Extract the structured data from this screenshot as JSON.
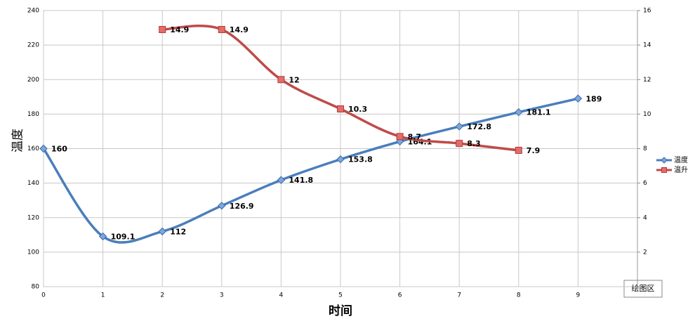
{
  "chart_data": {
    "type": "line",
    "x": [
      0,
      1,
      2,
      3,
      4,
      5,
      6,
      7,
      8,
      9
    ],
    "xlim": [
      0,
      10
    ],
    "xticks": [
      0,
      1,
      2,
      3,
      4,
      5,
      6,
      7,
      8,
      9
    ],
    "ylim": [
      80,
      240
    ],
    "yticks": [
      80,
      100,
      120,
      140,
      160,
      180,
      200,
      220,
      240
    ],
    "y2lim": [
      0,
      16
    ],
    "y2ticks": [
      2,
      4,
      6,
      8,
      10,
      12,
      14,
      16
    ],
    "ylabel": "温度",
    "xlabel": "时间",
    "grid": true,
    "legend": "right",
    "tooltip": "绘图区",
    "series": [
      {
        "name": "温度",
        "color": "#4a7ebb",
        "marker": "diamond",
        "values": [
          160,
          109.1,
          112,
          126.9,
          141.8,
          153.8,
          164.1,
          172.8,
          181.1,
          189
        ]
      },
      {
        "name": "温升",
        "color": "#be4b48",
        "marker": "square",
        "axis": "y2",
        "values": [
          null,
          null,
          14.9,
          14.9,
          12,
          10.3,
          8.7,
          8.3,
          7.9,
          null
        ]
      }
    ]
  }
}
